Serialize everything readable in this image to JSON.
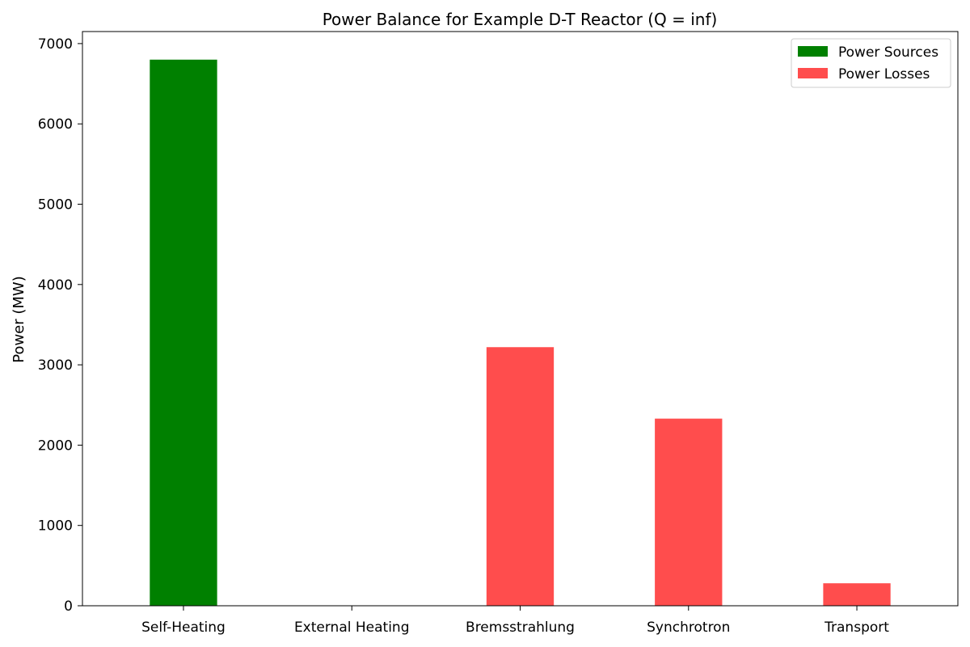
{
  "chart_data": {
    "type": "bar",
    "title": "Power Balance for Example D-T Reactor (Q = inf)",
    "xlabel": "",
    "ylabel": "Power (MW)",
    "categories": [
      "Self-Heating",
      "External Heating",
      "Bremsstrahlung",
      "Synchrotron",
      "Transport"
    ],
    "series": [
      {
        "name": "Power Sources",
        "color": "#008000",
        "values": [
          6800,
          0,
          null,
          null,
          null
        ]
      },
      {
        "name": "Power Losses",
        "color": "#ff4d4d",
        "values": [
          null,
          null,
          3220,
          2330,
          280
        ]
      }
    ],
    "ylim": [
      0,
      7150
    ],
    "yticks": [
      0,
      1000,
      2000,
      3000,
      4000,
      5000,
      6000,
      7000
    ],
    "grid": false,
    "legend_position": "top-right"
  }
}
